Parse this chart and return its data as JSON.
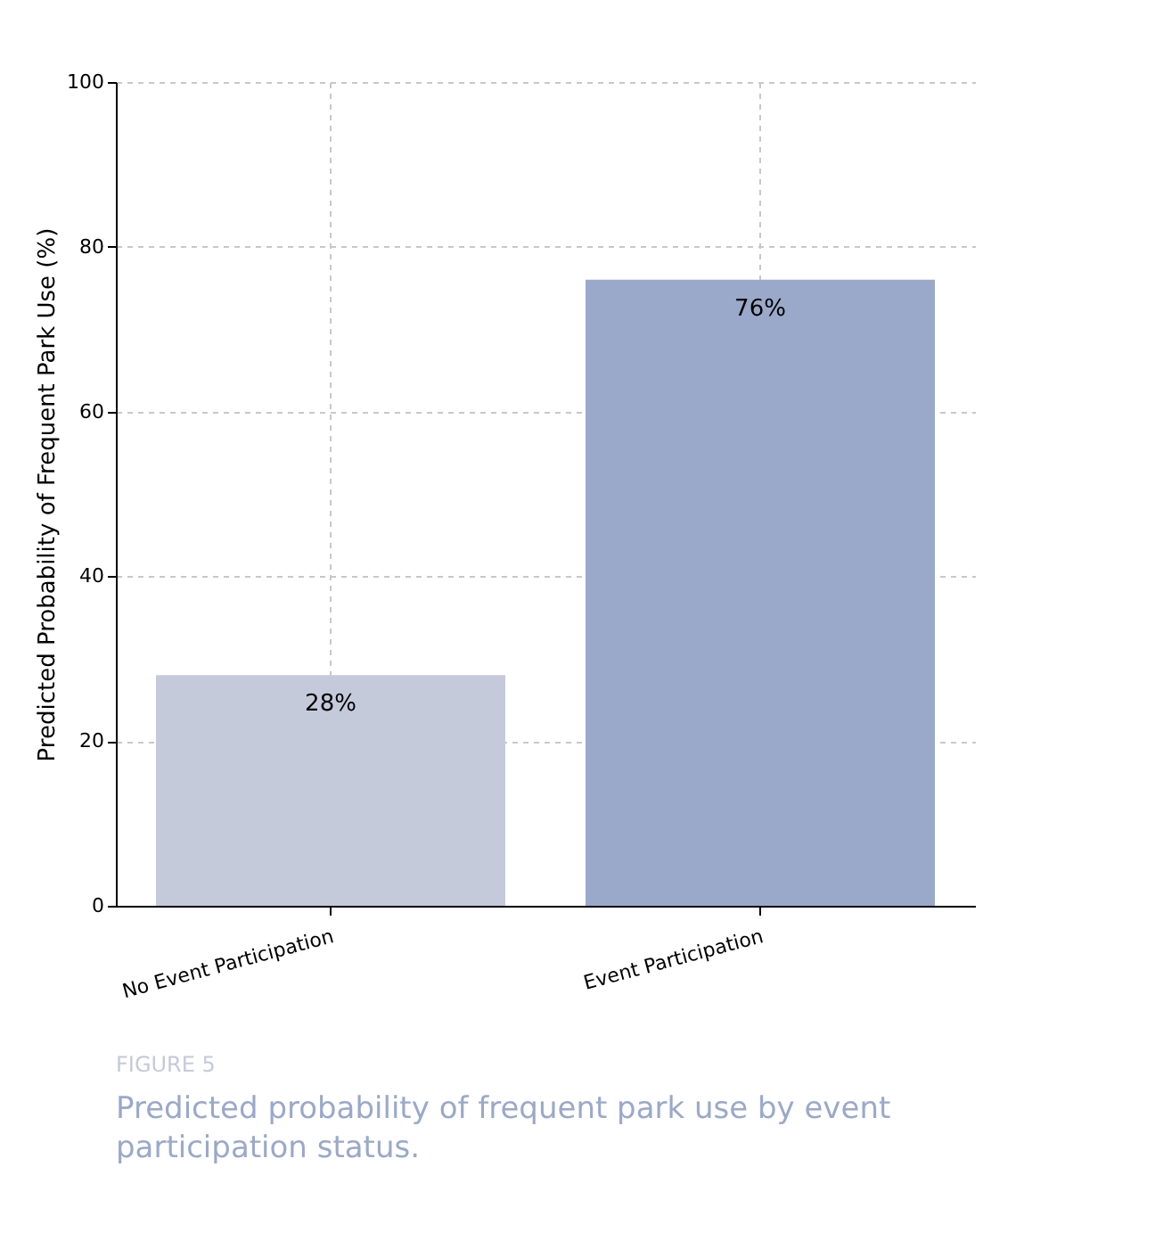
{
  "chart_data": {
    "type": "bar",
    "categories": [
      "No Event Participation",
      "Event Participation"
    ],
    "values": [
      28,
      76
    ],
    "colors": [
      "#c5cadb",
      "#9aa9c9"
    ],
    "value_labels": [
      "28%",
      "76%"
    ],
    "ylabel": "Predicted Probability of Frequent Park Use (%)",
    "ylim": [
      0,
      100
    ],
    "yticks": [
      0,
      20,
      40,
      60,
      80,
      100
    ],
    "grid": true,
    "annotations": [
      "FIGURE 5",
      "Predicted probability of frequent park use by event participation status."
    ]
  }
}
